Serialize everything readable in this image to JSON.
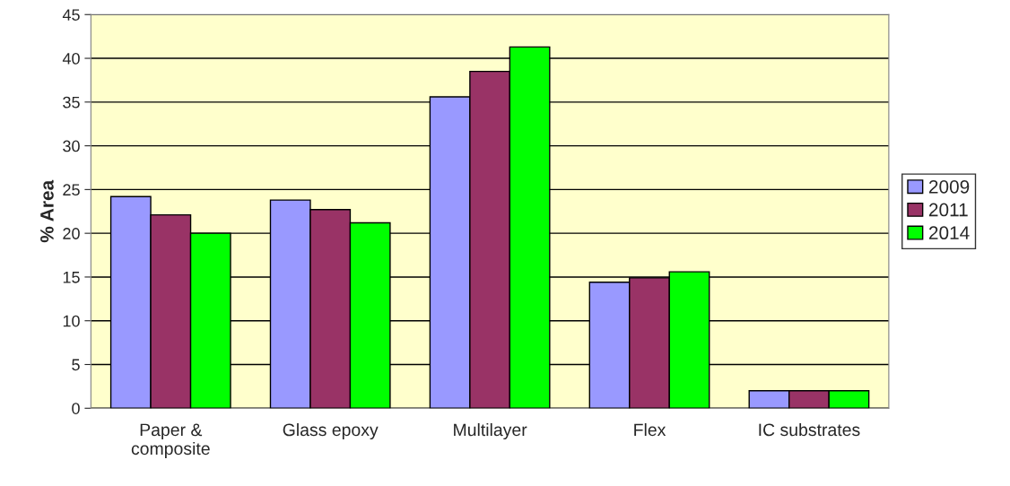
{
  "chart_data": {
    "type": "bar",
    "ylabel": "% Area",
    "categories": [
      "Paper &\ncomposite",
      "Glass epoxy",
      "Multilayer",
      "Flex",
      "IC substrates"
    ],
    "series": [
      {
        "name": "2009",
        "color": "#9999ff",
        "values": [
          24.2,
          23.8,
          35.6,
          14.4,
          2.0
        ]
      },
      {
        "name": "2011",
        "color": "#993366",
        "values": [
          22.1,
          22.7,
          38.5,
          14.9,
          2.0
        ]
      },
      {
        "name": "2014",
        "color": "#00ff00",
        "values": [
          20.0,
          21.2,
          41.3,
          15.6,
          2.0
        ]
      }
    ],
    "ylim": [
      0,
      45
    ],
    "yticks": [
      0,
      5,
      10,
      15,
      20,
      25,
      30,
      35,
      40,
      45
    ],
    "grid": "y",
    "legend": "right"
  }
}
